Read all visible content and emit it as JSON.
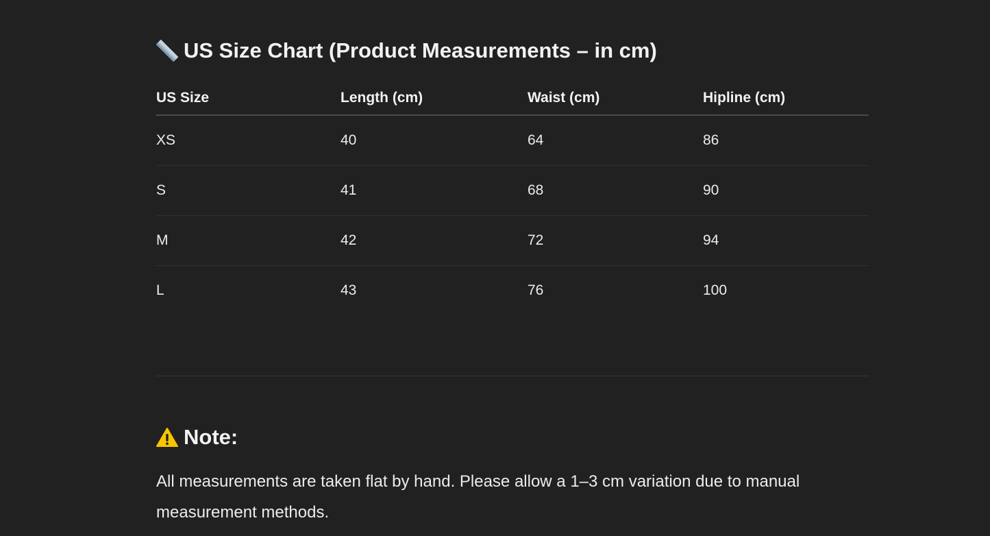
{
  "size_chart": {
    "icon": "ruler-icon",
    "title": "US Size Chart (Product Measurements – in cm)",
    "columns": [
      "US Size",
      "Length (cm)",
      "Waist (cm)",
      "Hipline (cm)"
    ],
    "rows": [
      [
        "XS",
        "40",
        "64",
        "86"
      ],
      [
        "S",
        "41",
        "68",
        "90"
      ],
      [
        "M",
        "42",
        "72",
        "94"
      ],
      [
        "L",
        "43",
        "76",
        "100"
      ]
    ]
  },
  "note": {
    "icon": "warning-icon",
    "title": "Note:",
    "text": "All measurements are taken flat by hand. Please allow a 1–3 cm variation due to manual measurement methods."
  },
  "colors": {
    "background": "#212121",
    "text": "#ececec",
    "warning": "#f7c600"
  }
}
